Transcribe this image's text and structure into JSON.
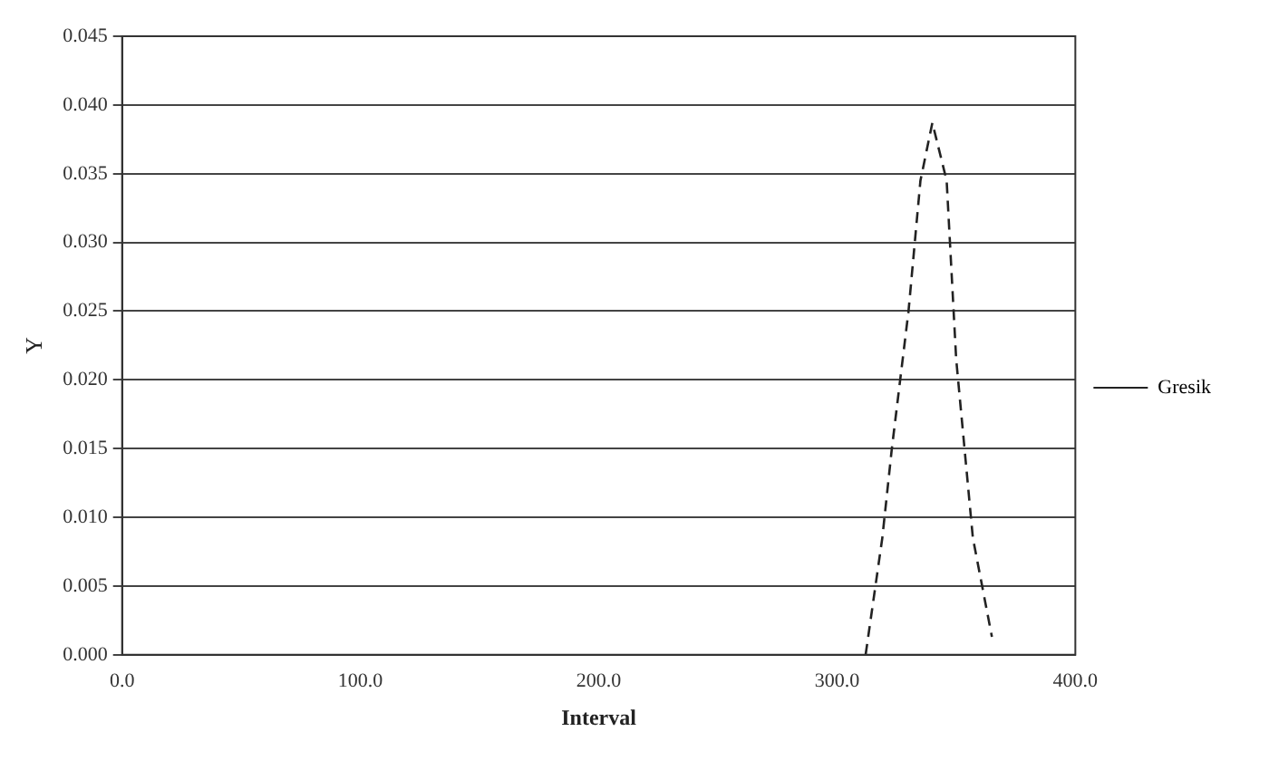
{
  "chart_data": {
    "type": "line",
    "xlabel": "Interval",
    "ylabel": "Y",
    "xlim": [
      0,
      400
    ],
    "xticks": [
      {
        "value": 0,
        "label": "0.0"
      },
      {
        "value": 100,
        "label": "100.0"
      },
      {
        "value": 200,
        "label": "200.0"
      },
      {
        "value": 300,
        "label": "300.0"
      },
      {
        "value": 400,
        "label": "400.0"
      }
    ],
    "ylim": [
      0,
      0.045
    ],
    "yticks": [
      {
        "value": 0,
        "label": "0.000"
      },
      {
        "value": 0.005,
        "label": "0.005"
      },
      {
        "value": 0.01,
        "label": "0.010"
      },
      {
        "value": 0.015,
        "label": "0.015"
      },
      {
        "value": 0.02,
        "label": "0.020"
      },
      {
        "value": 0.025,
        "label": "0.025"
      },
      {
        "value": 0.03,
        "label": "0.030"
      },
      {
        "value": 0.035,
        "label": "0.035"
      },
      {
        "value": 0.04,
        "label": "0.040"
      },
      {
        "value": 0.045,
        "label": "0.045"
      }
    ],
    "grid": "y",
    "legend": "right",
    "line_style": "dashed",
    "marker": "none",
    "series": [
      {
        "name": "Gresik",
        "color": "#222222",
        "x": [
          312,
          319,
          323,
          330,
          335,
          340,
          346,
          350,
          357,
          365
        ],
        "values": [
          0,
          0.0085,
          0.015,
          0.025,
          0.0345,
          0.0387,
          0.0345,
          0.0215,
          0.0085,
          0.0013
        ]
      }
    ]
  }
}
